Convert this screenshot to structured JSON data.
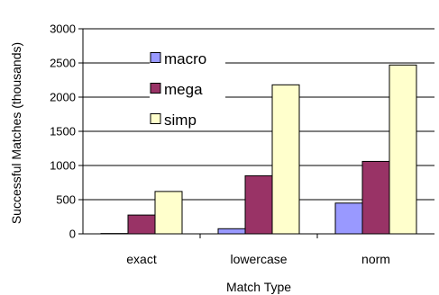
{
  "chart_data": {
    "type": "bar",
    "title": "",
    "xlabel": "Match Type",
    "ylabel": "Successful Matches (thousands)",
    "categories": [
      "exact",
      "lowercase",
      "norm"
    ],
    "series": [
      {
        "name": "macro",
        "color": "#9999ff",
        "values": [
          5,
          75,
          450
        ]
      },
      {
        "name": "mega",
        "color": "#993366",
        "values": [
          275,
          850,
          1060
        ]
      },
      {
        "name": "simp",
        "color": "#ffffcc",
        "values": [
          620,
          2180,
          2470
        ]
      }
    ],
    "ylim": [
      0,
      3000
    ],
    "yticks": [
      0,
      500,
      1000,
      1500,
      2000,
      2500,
      3000
    ],
    "grid": true,
    "legend": "top-left"
  }
}
